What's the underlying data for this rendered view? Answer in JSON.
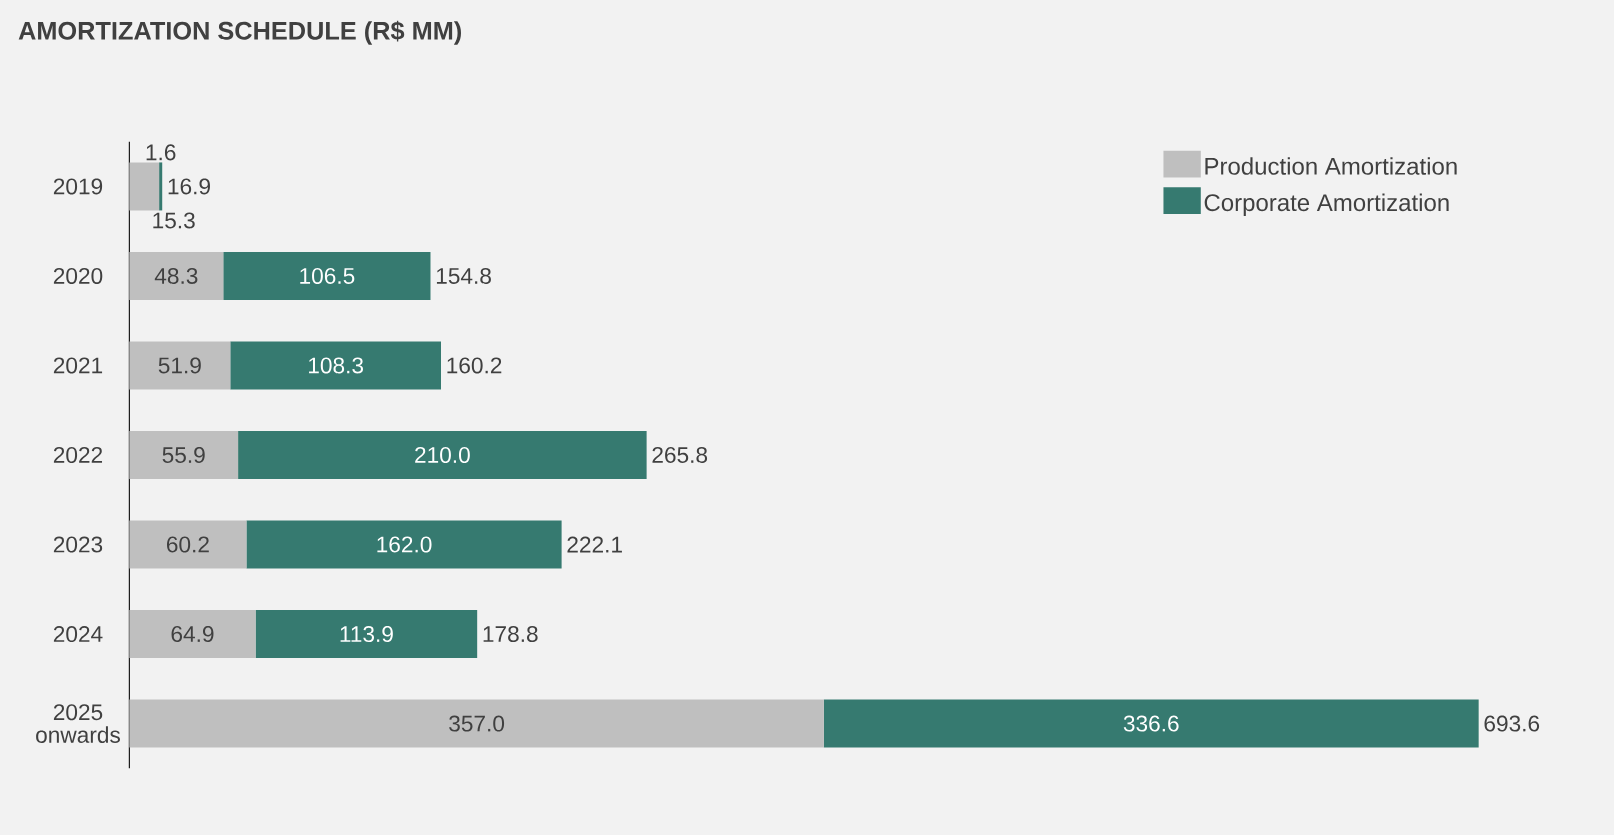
{
  "chart_data": {
    "type": "bar",
    "orientation": "horizontal",
    "stacked": true,
    "title": "AMORTIZATION SCHEDULE (R$ MM)",
    "categories": [
      "2019",
      "2020",
      "2021",
      "2022",
      "2023",
      "2024",
      "2025 onwards"
    ],
    "series": [
      {
        "name": "Production Amortization",
        "color": "#bfbfbf",
        "values": [
          15.3,
          48.3,
          51.9,
          55.9,
          60.2,
          64.9,
          357.0
        ],
        "value_labels": [
          "15.3",
          "48.3",
          "51.9",
          "55.9",
          "60.2",
          "64.9",
          "357.0"
        ]
      },
      {
        "name": "Corporate Amortization",
        "color": "#367a70",
        "values": [
          1.6,
          106.5,
          108.3,
          210.0,
          162.0,
          113.9,
          336.6
        ],
        "value_labels": [
          "1.6",
          "106.5",
          "108.3",
          "210.0",
          "162.0",
          "113.9",
          "336.6"
        ]
      }
    ],
    "totals": [
      "16.9",
      "154.8",
      "160.2",
      "265.8",
      "222.1",
      "178.8",
      "693.6"
    ],
    "legend": "top right",
    "tick_labels": "y"
  }
}
